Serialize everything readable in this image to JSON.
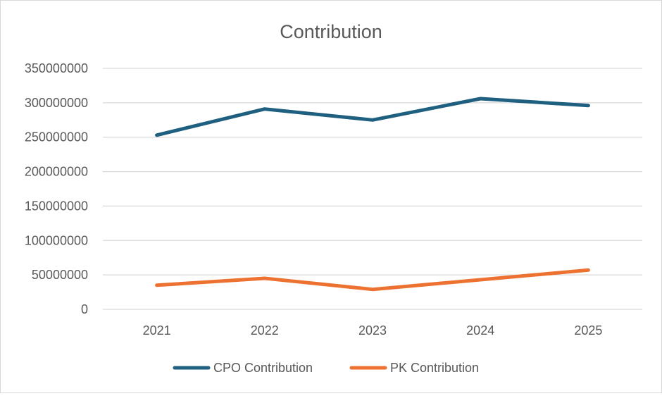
{
  "chart_data": {
    "type": "line",
    "title": "Contribution",
    "xlabel": "",
    "ylabel": "",
    "categories": [
      "2021",
      "2022",
      "2023",
      "2024",
      "2025"
    ],
    "ylim": [
      0,
      350000000
    ],
    "y_ticks": [
      "0",
      "50000000",
      "100000000",
      "150000000",
      "200000000",
      "250000000",
      "300000000",
      "350000000"
    ],
    "grid": true,
    "legend_position": "bottom",
    "series": [
      {
        "name": "CPO Contribution",
        "color": "#1f5f7f",
        "values": [
          253000000,
          291000000,
          275000000,
          306000000,
          296000000
        ]
      },
      {
        "name": "PK Contribution",
        "color": "#ed7232",
        "values": [
          35000000,
          45000000,
          29000000,
          43000000,
          57000000
        ]
      }
    ]
  }
}
